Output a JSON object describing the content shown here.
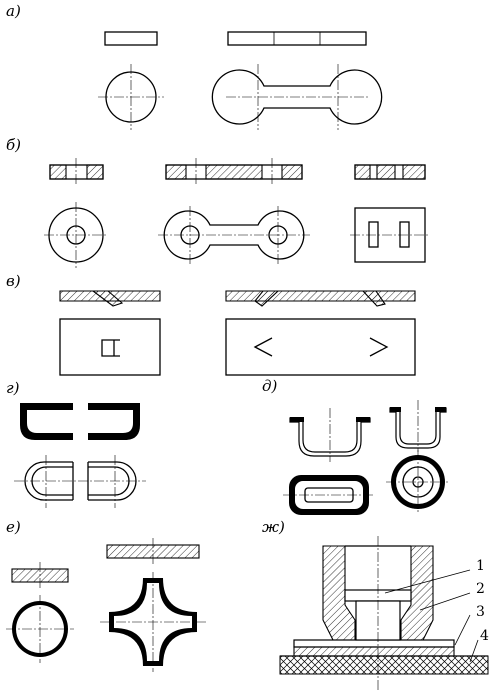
{
  "labels": {
    "a": "а)",
    "b": "б)",
    "v": "в)",
    "g": "г)",
    "d": "д)",
    "e": "е)",
    "zh": "ж)"
  },
  "callouts": [
    "1",
    "2",
    "3",
    "4"
  ]
}
